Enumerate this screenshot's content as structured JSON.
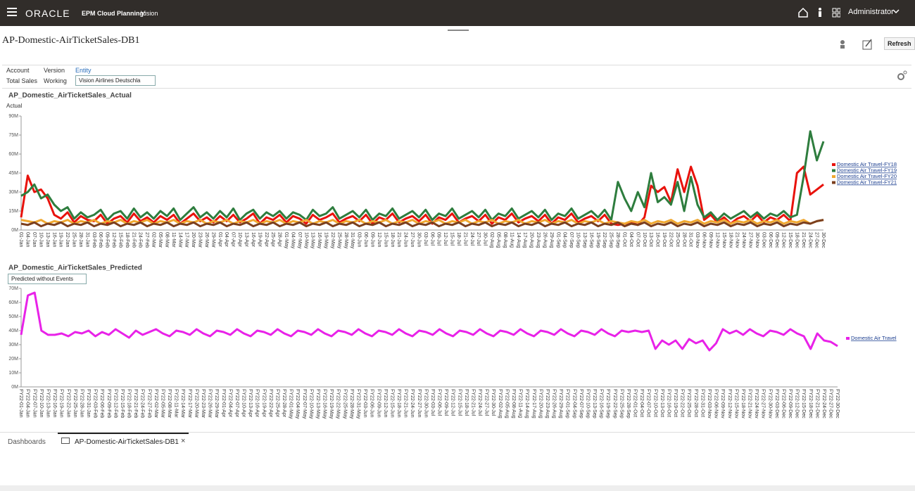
{
  "header": {
    "brand": "ORACLE",
    "product": "EPM Cloud Planning:",
    "app": "Vision",
    "user": "Administrator"
  },
  "page": {
    "title": "AP-Domestic-AirTicketSales-DB1",
    "refresh": "Refresh"
  },
  "pov": {
    "columns": [
      {
        "label": "Account",
        "value": "Total Sales"
      },
      {
        "label": "Version",
        "value": "Working"
      },
      {
        "label": "Entity",
        "value": "Vision Airlines Deutschla"
      }
    ]
  },
  "chart_data": [
    {
      "type": "line",
      "title": "AP_Domestic_AirTicketSales_Actual",
      "y_label": "Actual",
      "legend": "right",
      "categories": [
        "01-Jan",
        "04-Jan",
        "07-Jan",
        "10-Jan",
        "13-Jan",
        "16-Jan",
        "19-Jan",
        "22-Jan",
        "25-Jan",
        "28-Jan",
        "31-Jan",
        "03-Feb",
        "06-Feb",
        "09-Feb",
        "12-Feb",
        "15-Feb",
        "18-Feb",
        "21-Feb",
        "24-Feb",
        "27-Feb",
        "02-Mar",
        "05-Mar",
        "08-Mar",
        "11-Mar",
        "14-Mar",
        "17-Mar",
        "20-Mar",
        "23-Mar",
        "26-Mar",
        "29-Mar",
        "01-Apr",
        "04-Apr",
        "07-Apr",
        "10-Apr",
        "13-Apr",
        "16-Apr",
        "19-Apr",
        "22-Apr",
        "25-Apr",
        "28-Apr",
        "01-May",
        "04-May",
        "07-May",
        "10-May",
        "13-May",
        "16-May",
        "19-May",
        "22-May",
        "25-May",
        "28-May",
        "31-May",
        "03-Jun",
        "06-Jun",
        "09-Jun",
        "12-Jun",
        "15-Jun",
        "18-Jun",
        "21-Jun",
        "24-Jun",
        "27-Jun",
        "30-Jun",
        "03-Jul",
        "06-Jul",
        "09-Jul",
        "12-Jul",
        "15-Jul",
        "18-Jul",
        "21-Jul",
        "24-Jul",
        "27-Jul",
        "30-Jul",
        "02-Aug",
        "05-Aug",
        "08-Aug",
        "11-Aug",
        "14-Aug",
        "17-Aug",
        "20-Aug",
        "23-Aug",
        "26-Aug",
        "29-Aug",
        "01-Sep",
        "04-Sep",
        "07-Sep",
        "10-Sep",
        "13-Sep",
        "16-Sep",
        "19-Sep",
        "22-Sep",
        "25-Sep",
        "28-Sep",
        "01-Oct",
        "04-Oct",
        "07-Oct",
        "10-Oct",
        "13-Oct",
        "16-Oct",
        "19-Oct",
        "22-Oct",
        "25-Oct",
        "28-Oct",
        "31-Oct",
        "03-Nov",
        "06-Nov",
        "09-Nov",
        "12-Nov",
        "15-Nov",
        "18-Nov",
        "21-Nov",
        "24-Nov",
        "27-Nov",
        "30-Nov",
        "03-Dec",
        "06-Dec",
        "09-Dec",
        "12-Dec",
        "15-Dec",
        "18-Dec",
        "21-Dec",
        "24-Dec",
        "27-Dec",
        "30-Dec"
      ],
      "ylim": [
        0,
        90
      ],
      "yticks": [
        {
          "value": 0,
          "label": "0M"
        },
        {
          "value": 15,
          "label": "15M"
        },
        {
          "value": 30,
          "label": "30M"
        },
        {
          "value": 45,
          "label": "45M"
        },
        {
          "value": 60,
          "label": "60M"
        },
        {
          "value": 75,
          "label": "75M"
        },
        {
          "value": 90,
          "label": "90M"
        }
      ],
      "series": [
        {
          "name": "Domestic Air Travel-FY18",
          "color": "#e8120c",
          "values": [
            10,
            43,
            30,
            32,
            25,
            12,
            9,
            14,
            6,
            11,
            8,
            7,
            12,
            5,
            9,
            11,
            6,
            13,
            7,
            10,
            6,
            11,
            8,
            12,
            5,
            9,
            13,
            7,
            10,
            6,
            11,
            7,
            12,
            6,
            9,
            13,
            5,
            10,
            8,
            12,
            6,
            11,
            9,
            5,
            12,
            8,
            10,
            13,
            6,
            9,
            11,
            7,
            12,
            5,
            10,
            8,
            13,
            6,
            9,
            11,
            7,
            12,
            5,
            10,
            8,
            13,
            6,
            9,
            11,
            7,
            12,
            5,
            10,
            8,
            13,
            6,
            9,
            11,
            7,
            12,
            5,
            10,
            8,
            13,
            6,
            9,
            11,
            7,
            12,
            5,
            4,
            5,
            6,
            4,
            10,
            35,
            30,
            34,
            22,
            48,
            30,
            50,
            35,
            8,
            12,
            6,
            10,
            5,
            9,
            11,
            7,
            12,
            6,
            10,
            8,
            12,
            7,
            45,
            50,
            28,
            32,
            36
          ]
        },
        {
          "name": "Domestic Air Travel-FY19",
          "color": "#2e7d3e",
          "values": [
            27,
            30,
            36,
            25,
            28,
            20,
            15,
            18,
            9,
            14,
            10,
            12,
            16,
            8,
            13,
            15,
            9,
            17,
            10,
            14,
            9,
            15,
            11,
            17,
            8,
            13,
            18,
            10,
            14,
            9,
            15,
            10,
            17,
            8,
            13,
            16,
            9,
            14,
            11,
            15,
            9,
            14,
            12,
            8,
            16,
            11,
            13,
            18,
            9,
            12,
            15,
            10,
            16,
            8,
            13,
            11,
            17,
            9,
            12,
            15,
            10,
            16,
            8,
            13,
            11,
            17,
            9,
            12,
            15,
            10,
            16,
            8,
            13,
            11,
            17,
            9,
            12,
            15,
            10,
            16,
            8,
            13,
            11,
            17,
            9,
            12,
            15,
            10,
            16,
            8,
            38,
            25,
            15,
            30,
            18,
            45,
            22,
            26,
            20,
            38,
            15,
            42,
            20,
            10,
            14,
            8,
            13,
            9,
            12,
            15,
            10,
            14,
            9,
            13,
            11,
            15,
            10,
            12,
            42,
            78,
            55,
            70
          ]
        },
        {
          "name": "Domestic Air Travel-FY20",
          "color": "#f0a830",
          "values": [
            8,
            7,
            6,
            8,
            5,
            7,
            6,
            8,
            5,
            7,
            6,
            8,
            5,
            7,
            6,
            8,
            5,
            7,
            6,
            8,
            5,
            7,
            6,
            8,
            5,
            7,
            6,
            8,
            5,
            7,
            6,
            8,
            5,
            7,
            6,
            8,
            5,
            7,
            6,
            8,
            5,
            7,
            6,
            8,
            5,
            7,
            6,
            8,
            5,
            7,
            6,
            8,
            5,
            7,
            6,
            8,
            5,
            7,
            6,
            8,
            5,
            7,
            6,
            8,
            5,
            7,
            6,
            8,
            5,
            7,
            6,
            8,
            5,
            7,
            6,
            8,
            5,
            7,
            6,
            8,
            5,
            7,
            6,
            8,
            5,
            7,
            6,
            8,
            5,
            7,
            6,
            5,
            7,
            6,
            8,
            5,
            7,
            6,
            8,
            5,
            7,
            6,
            8,
            5,
            7,
            6,
            8,
            5,
            7,
            6,
            8,
            5,
            7,
            6,
            8,
            5,
            7,
            6,
            8,
            5,
            7,
            8
          ]
        },
        {
          "name": "Domestic Air Travel-FY21",
          "color": "#7b3f1e",
          "values": [
            5,
            4,
            6,
            3,
            5,
            4,
            6,
            3,
            5,
            4,
            6,
            3,
            5,
            4,
            6,
            3,
            5,
            4,
            6,
            3,
            5,
            4,
            6,
            3,
            5,
            4,
            6,
            3,
            5,
            4,
            6,
            3,
            5,
            4,
            6,
            3,
            5,
            4,
            6,
            3,
            5,
            4,
            6,
            3,
            5,
            4,
            6,
            3,
            5,
            4,
            6,
            3,
            5,
            4,
            6,
            3,
            5,
            4,
            6,
            3,
            5,
            4,
            6,
            3,
            5,
            4,
            6,
            3,
            5,
            4,
            6,
            3,
            5,
            4,
            6,
            3,
            5,
            4,
            6,
            3,
            5,
            4,
            6,
            3,
            5,
            4,
            6,
            3,
            5,
            4,
            6,
            3,
            5,
            4,
            6,
            3,
            5,
            4,
            6,
            3,
            5,
            4,
            6,
            3,
            5,
            4,
            6,
            3,
            5,
            4,
            6,
            3,
            5,
            4,
            6,
            3,
            5,
            4,
            6,
            5,
            7,
            8
          ]
        }
      ]
    },
    {
      "type": "line",
      "title": "AP_Domestic_AirTicketSales_Predicted",
      "selector": "Predicted without Events",
      "legend": "right",
      "categories": [
        "FY22-01-Jan",
        "FY22-04-Jan",
        "FY22-07-Jan",
        "FY22-10-Jan",
        "FY22-13-Jan",
        "FY22-16-Jan",
        "FY22-19-Jan",
        "FY22-22-Jan",
        "FY22-25-Jan",
        "FY22-28-Jan",
        "FY22-31-Jan",
        "FY22-03-Feb",
        "FY22-06-Feb",
        "FY22-09-Feb",
        "FY22-12-Feb",
        "FY22-15-Feb",
        "FY22-18-Feb",
        "FY22-21-Feb",
        "FY22-24-Feb",
        "FY22-27-Feb",
        "FY22-02-Mar",
        "FY22-05-Mar",
        "FY22-08-Mar",
        "FY22-11-Mar",
        "FY22-14-Mar",
        "FY22-17-Mar",
        "FY22-20-Mar",
        "FY22-23-Mar",
        "FY22-26-Mar",
        "FY22-29-Mar",
        "FY22-01-Apr",
        "FY22-04-Apr",
        "FY22-07-Apr",
        "FY22-10-Apr",
        "FY22-13-Apr",
        "FY22-16-Apr",
        "FY22-19-Apr",
        "FY22-22-Apr",
        "FY22-25-Apr",
        "FY22-28-Apr",
        "FY22-01-May",
        "FY22-04-May",
        "FY22-07-May",
        "FY22-10-May",
        "FY22-13-May",
        "FY22-16-May",
        "FY22-19-May",
        "FY22-22-May",
        "FY22-25-May",
        "FY22-28-May",
        "FY22-31-May",
        "FY22-03-Jun",
        "FY22-06-Jun",
        "FY22-09-Jun",
        "FY22-12-Jun",
        "FY22-15-Jun",
        "FY22-18-Jun",
        "FY22-21-Jun",
        "FY22-24-Jun",
        "FY22-27-Jun",
        "FY22-30-Jun",
        "FY22-03-Jul",
        "FY22-06-Jul",
        "FY22-09-Jul",
        "FY22-12-Jul",
        "FY22-15-Jul",
        "FY22-18-Jul",
        "FY22-21-Jul",
        "FY22-24-Jul",
        "FY22-27-Jul",
        "FY22-30-Jul",
        "FY22-02-Aug",
        "FY22-05-Aug",
        "FY22-08-Aug",
        "FY22-11-Aug",
        "FY22-14-Aug",
        "FY22-17-Aug",
        "FY22-20-Aug",
        "FY22-23-Aug",
        "FY22-26-Aug",
        "FY22-29-Aug",
        "FY22-01-Sep",
        "FY22-04-Sep",
        "FY22-07-Sep",
        "FY22-10-Sep",
        "FY22-13-Sep",
        "FY22-16-Sep",
        "FY22-19-Sep",
        "FY22-22-Sep",
        "FY22-25-Sep",
        "FY22-28-Sep",
        "FY22-01-Oct",
        "FY22-04-Oct",
        "FY22-07-Oct",
        "FY22-10-Oct",
        "FY22-13-Oct",
        "FY22-16-Oct",
        "FY22-19-Oct",
        "FY22-22-Oct",
        "FY22-25-Oct",
        "FY22-28-Oct",
        "FY22-31-Oct",
        "FY22-03-Nov",
        "FY22-06-Nov",
        "FY22-09-Nov",
        "FY22-12-Nov",
        "FY22-15-Nov",
        "FY22-18-Nov",
        "FY22-21-Nov",
        "FY22-24-Nov",
        "FY22-27-Nov",
        "FY22-30-Nov",
        "FY22-03-Dec",
        "FY22-06-Dec",
        "FY22-09-Dec",
        "FY22-12-Dec",
        "FY22-15-Dec",
        "FY22-18-Dec",
        "FY22-21-Dec",
        "FY22-24-Dec",
        "FY22-27-Dec",
        "FY22-30-Dec"
      ],
      "ylim": [
        0,
        70
      ],
      "yticks": [
        {
          "value": 0,
          "label": "0M"
        },
        {
          "value": 10,
          "label": "10M"
        },
        {
          "value": 20,
          "label": "20M"
        },
        {
          "value": 30,
          "label": "30M"
        },
        {
          "value": 40,
          "label": "40M"
        },
        {
          "value": 50,
          "label": "50M"
        },
        {
          "value": 60,
          "label": "60M"
        },
        {
          "value": 70,
          "label": "70M"
        }
      ],
      "series": [
        {
          "name": "Domestic Air Travel",
          "color": "#e822e8",
          "values": [
            37,
            65,
            67,
            40,
            37,
            37,
            38,
            36,
            39,
            38,
            40,
            36,
            39,
            37,
            41,
            38,
            35,
            40,
            37,
            39,
            41,
            38,
            36,
            40,
            39,
            37,
            41,
            38,
            36,
            40,
            39,
            37,
            41,
            38,
            36,
            40,
            39,
            37,
            41,
            38,
            36,
            40,
            39,
            37,
            41,
            38,
            36,
            40,
            39,
            37,
            41,
            38,
            36,
            40,
            39,
            37,
            41,
            38,
            36,
            40,
            39,
            37,
            41,
            38,
            36,
            40,
            39,
            37,
            41,
            38,
            36,
            40,
            39,
            37,
            41,
            38,
            36,
            40,
            39,
            37,
            41,
            38,
            36,
            40,
            39,
            37,
            41,
            38,
            36,
            40,
            39,
            40,
            39,
            40,
            27,
            33,
            30,
            33,
            27,
            34,
            31,
            33,
            26,
            31,
            41,
            38,
            40,
            37,
            41,
            38,
            36,
            40,
            39,
            37,
            41,
            38,
            36,
            27,
            38,
            33,
            32,
            29
          ]
        }
      ]
    }
  ],
  "tabs": [
    "Dashboards",
    "AP-Domestic-AirTicketSales-DB1"
  ]
}
